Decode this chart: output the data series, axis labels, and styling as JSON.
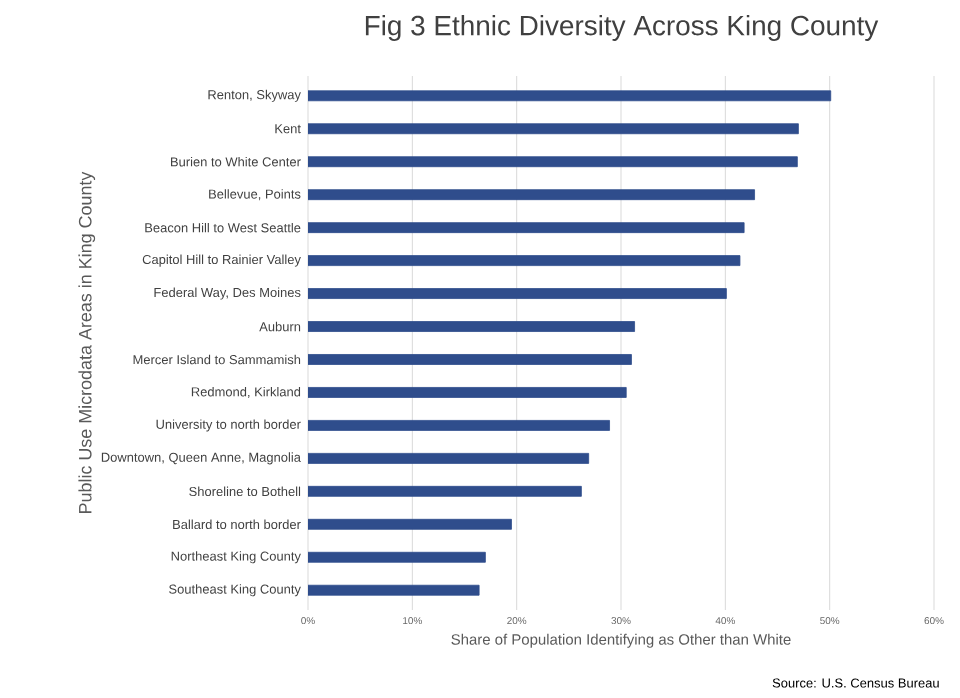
{
  "chart_data": {
    "type": "bar",
    "orientation": "horizontal",
    "title": "Fig 3 Ethnic Diversity Across King County",
    "xlabel": "Share of Population Identifying as Other than White",
    "ylabel": "Public Use Microdata Areas in King County",
    "categories": [
      "Renton, Skyway",
      "Kent",
      "Burien to White Center",
      "Bellevue, Points",
      "Beacon Hill to West Seattle",
      "Capitol Hill to Rainier Valley",
      "Federal Way, Des Moines",
      "Auburn",
      "Mercer Island to Sammamish",
      "Redmond, Kirkland",
      "University to north border",
      "Downtown, Queen Anne, Magnolia",
      "Shoreline to Bothell",
      "Ballard to north border",
      "Northeast King County",
      "Southeast King County"
    ],
    "values": [
      50.1,
      47.0,
      46.9,
      42.8,
      41.8,
      41.4,
      40.1,
      31.3,
      31.0,
      30.5,
      28.9,
      26.9,
      26.2,
      19.5,
      17.0,
      16.4
    ],
    "color": "#2f4d8c",
    "xlim": [
      0,
      60
    ],
    "xticks": [
      {
        "value": 0,
        "label": "0%"
      },
      {
        "value": 10,
        "label": "10%"
      },
      {
        "value": 20,
        "label": "20%"
      },
      {
        "value": 30,
        "label": "30%"
      },
      {
        "value": 40,
        "label": "40%"
      },
      {
        "value": 50,
        "label": "50%"
      },
      {
        "value": 60,
        "label": "60%"
      }
    ],
    "grid": "x",
    "annotations": [
      "Source: U.S. Census Bureau"
    ]
  }
}
